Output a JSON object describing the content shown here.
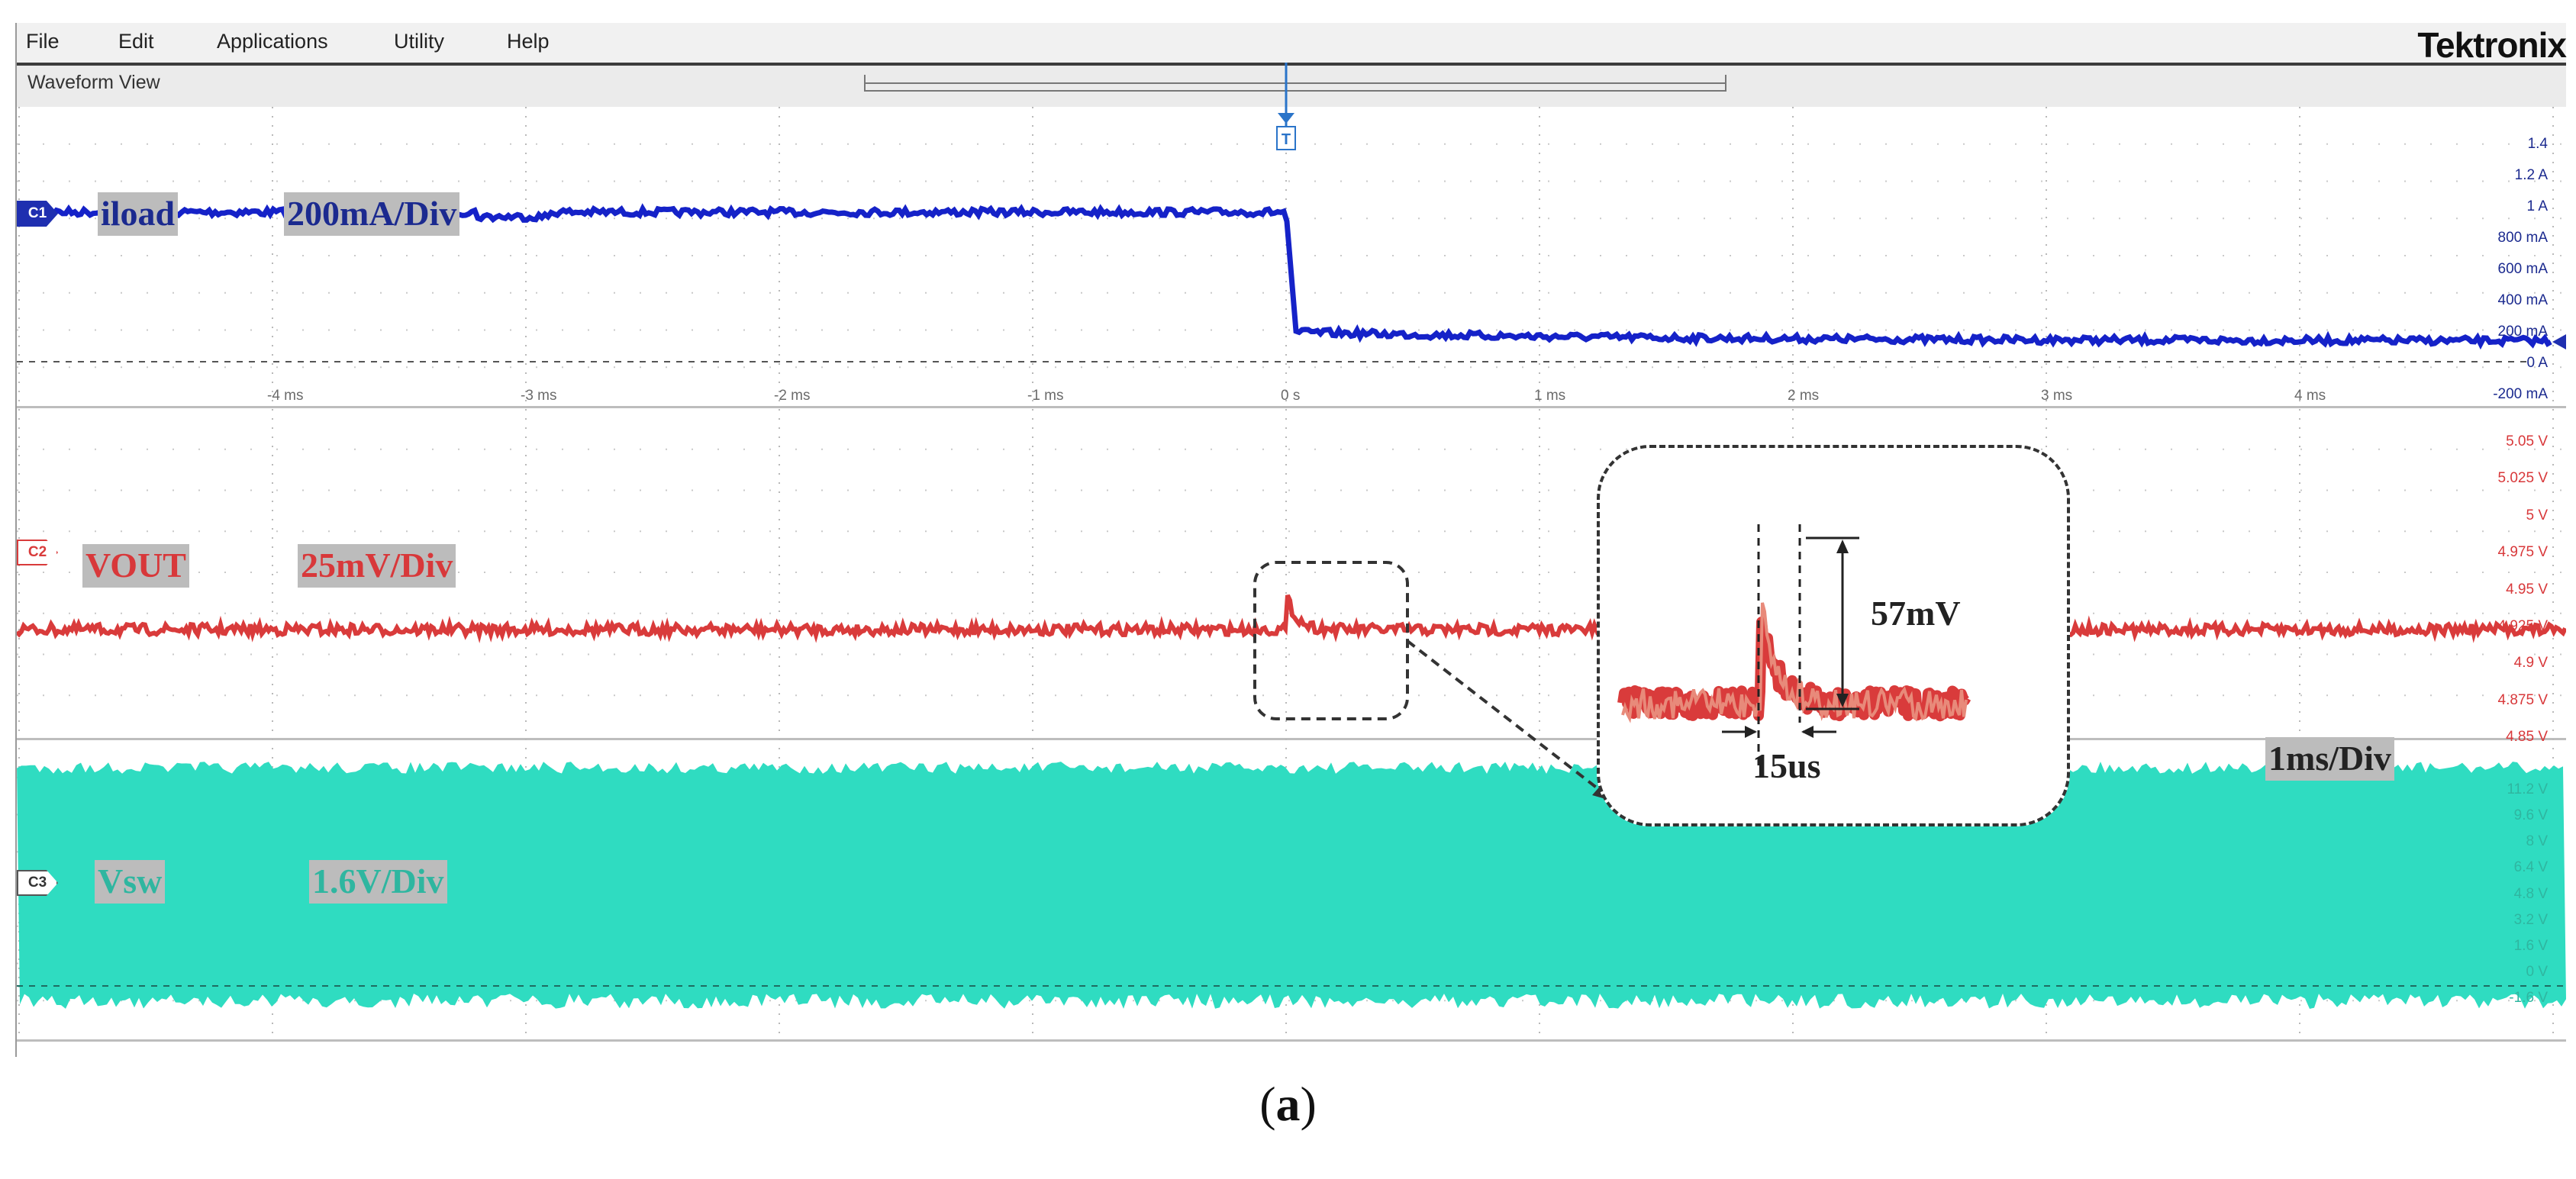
{
  "menu": [
    "File",
    "Edit",
    "Applications",
    "Utility",
    "Help"
  ],
  "brand": "Tektronix",
  "view_title": "Waveform View",
  "trigger_marker": "T",
  "time_axis": {
    "labels": [
      "-4 ms",
      "-3 ms",
      "-2 ms",
      "-1 ms",
      "0 s",
      "1 ms",
      "2 ms",
      "3 ms",
      "4 ms"
    ],
    "timebase_tag": "1ms/Div"
  },
  "channels": [
    {
      "id": "C1",
      "color": "#1522c8",
      "name_tag": "iload",
      "scale_tag": "200mA/Div",
      "scale_labels": [
        "1.4",
        "1.2 A",
        "1 A",
        "800 mA",
        "600 mA",
        "400 mA",
        "200 mA",
        "0 A",
        "-200 mA"
      ]
    },
    {
      "id": "C2",
      "color": "#d93b3b",
      "name_tag": "VOUT",
      "scale_tag": "25mV/Div",
      "scale_labels": [
        "5.05 V",
        "5.025 V",
        "5 V",
        "4.975 V",
        "4.95 V",
        "4.925 V",
        "4.9 V",
        "4.875 V",
        "4.85 V"
      ]
    },
    {
      "id": "C3",
      "color": "#2fdcc1",
      "name_tag": "Vsw",
      "scale_tag": "1.6V/Div",
      "scale_labels": [
        "11.2 V",
        "9.6 V",
        "8 V",
        "6.4 V",
        "4.8 V",
        "3.2 V",
        "1.6 V",
        "0 V",
        "-1.6 V"
      ]
    }
  ],
  "inset": {
    "amplitude_label": "57mV",
    "duration_label": "15us"
  },
  "caption_open": "(",
  "caption_letter": "a",
  "caption_close": ")"
}
